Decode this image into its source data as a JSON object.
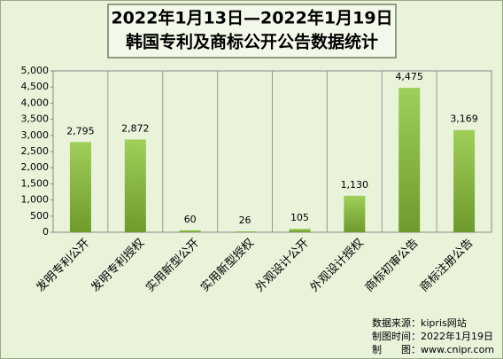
{
  "chart_data": {
    "type": "bar",
    "title": "2022年1月13日—2022年1月19日",
    "subtitle": "韩国专利及商标公开公告数据统计",
    "categories": [
      "发明专利公开",
      "发明专利授权",
      "实用新型公开",
      "实用新型授权",
      "外观设计公开",
      "外观设计授权",
      "商标初审公告",
      "商标注册公告"
    ],
    "values": [
      2795,
      2872,
      60,
      26,
      105,
      1130,
      4475,
      3169
    ],
    "value_labels": [
      "2,795",
      "2,872",
      "60",
      "26",
      "105",
      "1,130",
      "4,475",
      "3,169"
    ],
    "color": "#6f9a2c",
    "ylim": [
      0,
      5000
    ],
    "yticks": [
      0,
      500,
      {
        "value": 1000,
        "label": "1,000"
      },
      {
        "value": 1500,
        "label": "1,500"
      },
      {
        "value": 2000,
        "label": "2,000"
      },
      {
        "value": 2500,
        "label": "2,500"
      },
      {
        "value": 3000,
        "label": "3,000"
      },
      {
        "value": 3500,
        "label": "3,500"
      },
      {
        "value": 4000,
        "label": "4,000"
      },
      {
        "value": 4500,
        "label": "4,500"
      },
      {
        "value": 5000,
        "label": "5,000"
      }
    ],
    "grid": true,
    "annotations": [
      "数据来源：kipris网站",
      "制图时间：2022年1月19日",
      "制　　图：www.cnipr.com"
    ]
  }
}
